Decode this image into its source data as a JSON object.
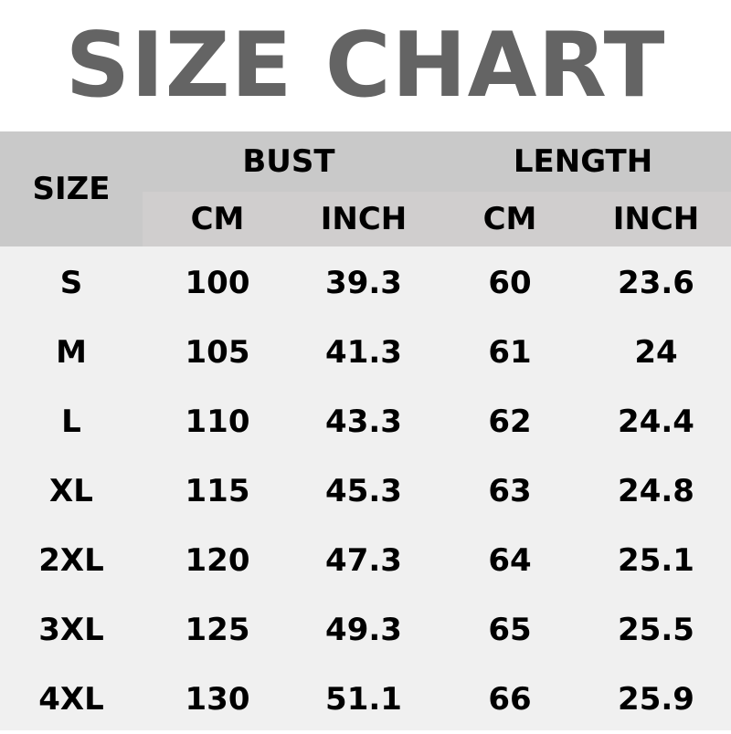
{
  "title": "SIZE CHART",
  "header": {
    "size": "SIZE",
    "bust": "BUST",
    "length": "LENGTH",
    "units": [
      "CM",
      "INCH",
      "CM",
      "INCH"
    ]
  },
  "rows": [
    [
      "S",
      "100",
      "39.3",
      "60",
      "23.6"
    ],
    [
      "M",
      "105",
      "41.3",
      "61",
      "24"
    ],
    [
      "L",
      "110",
      "43.3",
      "62",
      "24.4"
    ],
    [
      "XL",
      "115",
      "45.3",
      "63",
      "24.8"
    ],
    [
      "2XL",
      "120",
      "47.3",
      "64",
      "25.1"
    ],
    [
      "3XL",
      "125",
      "49.3",
      "65",
      "25.5"
    ],
    [
      "4XL",
      "130",
      "51.1",
      "66",
      "25.9"
    ]
  ]
}
